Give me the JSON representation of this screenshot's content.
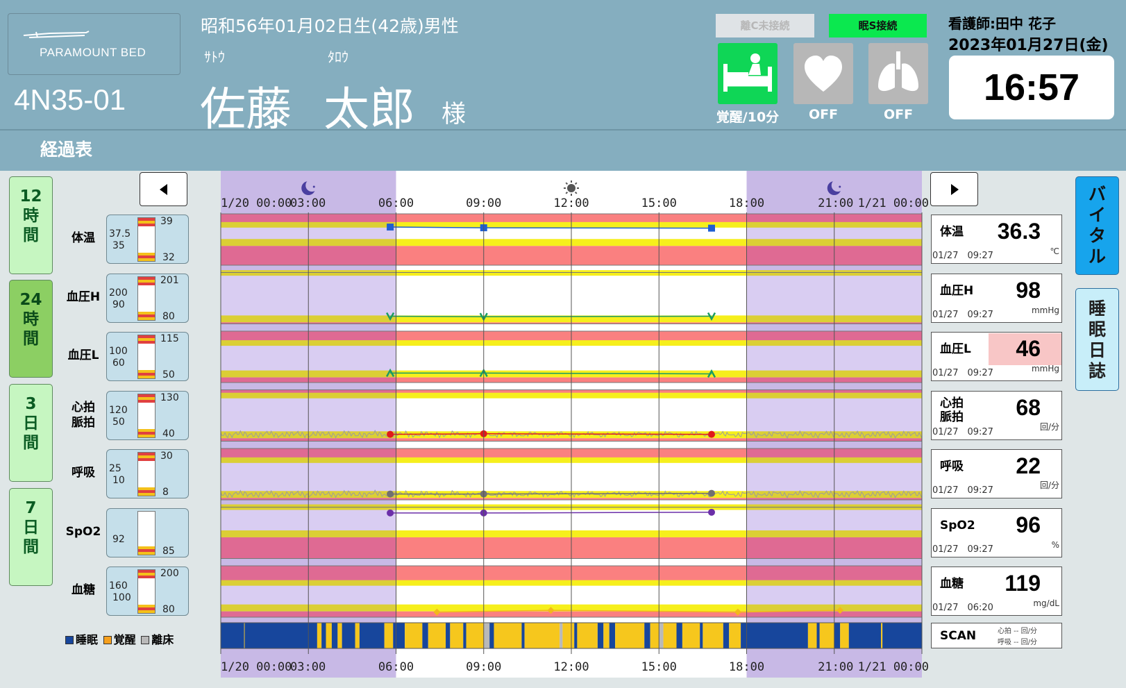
{
  "header": {
    "logo_text": "PARAMOUNT BED",
    "room": "4N35-01",
    "birth_line": "昭和56年01月02日生(42歳)男性",
    "family_kana": "ｻﾄｳ",
    "given_kana": "ﾀﾛｳ",
    "family_name": "佐藤",
    "given_name": "太郎",
    "honorific": "様",
    "conn_c": "離C未接続",
    "conn_s": "眠S接続",
    "bed_status_label": "覚醒/10分",
    "heart_label": "OFF",
    "lung_label": "OFF",
    "nurse": "看護師:田中 花子",
    "date": "2023年01月27日(金)",
    "time": "16:57",
    "colors": {
      "header_bg": "#85aebf",
      "connected": "#0be84f",
      "disconnected": "#dfe3e6",
      "bed_icon_bg": "#0fd656",
      "off_icon_bg": "#b7b7b7"
    },
    "icons": [
      "bed-person-icon",
      "heart-icon",
      "lungs-icon"
    ]
  },
  "subheader": {
    "title": "経過表"
  },
  "periods": [
    "12\n時\n間",
    "24\n時\n間",
    "3\n日\n間",
    "7\n日\n間"
  ],
  "active_period": 1,
  "right_tabs": {
    "vital": "バ\nイ\nタ\nル",
    "sleep": "睡\n眠\n日\n誌"
  },
  "time_axis": {
    "labels": [
      "1/20 00:00",
      "03:00",
      "06:00",
      "09:00",
      "12:00",
      "15:00",
      "18:00",
      "21:00",
      "1/21 00:00"
    ],
    "hours": [
      0,
      3,
      6,
      9,
      12,
      15,
      18,
      21,
      24
    ],
    "night_ranges": [
      [
        0,
        6
      ],
      [
        18,
        24
      ]
    ],
    "icons": [
      {
        "name": "moon-icon",
        "hour": 3
      },
      {
        "name": "sun-icon",
        "hour": 12
      },
      {
        "name": "moon-icon",
        "hour": 21
      }
    ]
  },
  "vitals": [
    {
      "key": "temp",
      "label": "体温",
      "scale_top": "39",
      "scale_bottom": "32",
      "scale_hi": "37.5",
      "scale_lo": "35",
      "card_label": "体温",
      "value": "36.3",
      "time": "01/27　09:27",
      "unit": "℃",
      "alert": false,
      "marker": "square",
      "color": "#1f5fd1",
      "ymin": 32,
      "ymax": 39,
      "normal": [
        35,
        37.5
      ],
      "points": [
        [
          5.8,
          37.2
        ],
        [
          9,
          37.1
        ],
        [
          16.8,
          37.05
        ]
      ]
    },
    {
      "key": "bph",
      "label": "血圧H",
      "scale_top": "201",
      "scale_bottom": "80",
      "scale_hi": "200",
      "scale_lo": "90",
      "card_label": "血圧H",
      "value": "98",
      "time": "01/27　09:27",
      "unit": "mmHg",
      "alert": false,
      "marker": "v",
      "color": "#1a9b63",
      "ymin": 80,
      "ymax": 201,
      "normal": [
        90,
        200
      ],
      "points": [
        [
          5.8,
          98
        ],
        [
          9,
          97
        ],
        [
          16.8,
          98
        ]
      ]
    },
    {
      "key": "bpl",
      "label": "血圧L",
      "scale_top": "115",
      "scale_bottom": "50",
      "scale_hi": "100",
      "scale_lo": "60",
      "card_label": "血圧L",
      "value": "46",
      "time": "01/27　09:27",
      "unit": "mmHg",
      "alert": true,
      "marker": "^",
      "color": "#1a9b63",
      "ymin": 50,
      "ymax": 115,
      "normal": [
        60,
        100
      ],
      "points": [
        [
          5.8,
          62
        ],
        [
          9,
          62
        ],
        [
          16.8,
          61
        ]
      ]
    },
    {
      "key": "hr",
      "label": "心拍\n脈拍",
      "scale_top": "130",
      "scale_bottom": "40",
      "scale_hi": "120",
      "scale_lo": "50",
      "card_label": "心拍\n脈拍",
      "value": "68",
      "time": "01/27　09:27",
      "unit": "回/分",
      "alert": false,
      "marker": "circle",
      "color": "#e01a1a",
      "ymin": 40,
      "ymax": 130,
      "normal": [
        50,
        120
      ],
      "points": [
        [
          5.8,
          52
        ],
        [
          9,
          53
        ],
        [
          16.8,
          52
        ]
      ],
      "trace": true
    },
    {
      "key": "resp",
      "label": "呼吸",
      "scale_top": "30",
      "scale_bottom": "8",
      "scale_hi": "25",
      "scale_lo": "10",
      "card_label": "呼吸",
      "value": "22",
      "time": "01/27　09:27",
      "unit": "回/分",
      "alert": false,
      "marker": "circle",
      "color": "#707070",
      "ymin": 8,
      "ymax": 30,
      "normal": [
        10,
        25
      ],
      "points": [
        [
          5.8,
          10.5
        ],
        [
          9,
          10.5
        ],
        [
          16.8,
          10.8
        ]
      ],
      "trace": true
    },
    {
      "key": "spo2",
      "label": "SpO2",
      "scale_top": "",
      "scale_bottom": "85",
      "scale_hi": "",
      "scale_lo": "92",
      "card_label": "SpO2",
      "value": "96",
      "time": "01/27　09:27",
      "unit": "%",
      "alert": false,
      "marker": "circle",
      "color": "#6b2fa8",
      "ymin": 85,
      "ymax": 100,
      "normal": [
        92,
        100
      ],
      "points": [
        [
          5.8,
          98.3
        ],
        [
          9,
          98.3
        ],
        [
          16.8,
          98.5
        ]
      ]
    },
    {
      "key": "glu",
      "label": "血糖",
      "scale_top": "200",
      "scale_bottom": "80",
      "scale_hi": "160",
      "scale_lo": "100",
      "card_label": "血糖",
      "value": "119",
      "time": "01/27　06:20",
      "unit": "mg/dL",
      "alert": false,
      "marker": "diamond",
      "color": "#f3b81a",
      "ymin": 80,
      "ymax": 200,
      "normal": [
        100,
        160
      ],
      "points": [
        [
          7.4,
          92
        ],
        [
          11.3,
          96
        ],
        [
          17.7,
          92
        ],
        [
          21.2,
          96
        ]
      ]
    }
  ],
  "scan": {
    "label": "SCAN",
    "line1": "心拍 -- 回/分",
    "line2": "呼吸 -- 回/分"
  },
  "legend": {
    "sleep": "睡眠",
    "awake": "覚醒",
    "out": "離床",
    "colors": {
      "sleep": "#17469c",
      "awake": "#f6c71d",
      "out": "#b9b9b9"
    }
  },
  "sleep_bar": [
    [
      "s",
      0,
      0.8
    ],
    [
      "a",
      0.8,
      0.82
    ],
    [
      "s",
      0.82,
      3.3
    ],
    [
      "a",
      3.3,
      3.45
    ],
    [
      "s",
      3.45,
      3.6
    ],
    [
      "a",
      3.6,
      3.8
    ],
    [
      "s",
      3.8,
      4.0
    ],
    [
      "a",
      4.0,
      4.15
    ],
    [
      "s",
      4.15,
      4.6
    ],
    [
      "a",
      4.6,
      4.75
    ],
    [
      "s",
      4.75,
      5.6
    ],
    [
      "a",
      5.6,
      5.9
    ],
    [
      "s",
      5.9,
      6.3
    ],
    [
      "a",
      6.3,
      6.9
    ],
    [
      "s",
      6.9,
      7.1
    ],
    [
      "a",
      7.1,
      7.7
    ],
    [
      "s",
      7.7,
      7.85
    ],
    [
      "a",
      7.85,
      8.3
    ],
    [
      "s",
      8.3,
      8.4
    ],
    [
      "a",
      8.4,
      9.0
    ],
    [
      "o",
      9.0,
      9.2
    ],
    [
      "s",
      9.2,
      9.35
    ],
    [
      "a",
      9.35,
      10.3
    ],
    [
      "s",
      10.3,
      10.4
    ],
    [
      "a",
      10.4,
      11.6
    ],
    [
      "o",
      11.6,
      11.7
    ],
    [
      "a",
      11.7,
      12.1
    ],
    [
      "s",
      12.1,
      12.2
    ],
    [
      "a",
      12.2,
      12.9
    ],
    [
      "s",
      12.9,
      13.1
    ],
    [
      "a",
      13.1,
      13.3
    ],
    [
      "s",
      13.3,
      13.5
    ],
    [
      "a",
      13.5,
      14.5
    ],
    [
      "s",
      14.5,
      14.7
    ],
    [
      "a",
      14.7,
      15.0
    ],
    [
      "o",
      15.0,
      15.15
    ],
    [
      "a",
      15.15,
      15.6
    ],
    [
      "s",
      15.6,
      15.8
    ],
    [
      "a",
      15.8,
      16.4
    ],
    [
      "s",
      16.4,
      16.5
    ],
    [
      "a",
      16.5,
      17.2
    ],
    [
      "s",
      17.2,
      17.4
    ],
    [
      "a",
      17.4,
      17.8
    ],
    [
      "s",
      17.8,
      20.1
    ],
    [
      "a",
      20.1,
      20.4
    ],
    [
      "s",
      20.4,
      20.5
    ],
    [
      "a",
      20.5,
      21.0
    ],
    [
      "s",
      21.0,
      21.2
    ],
    [
      "a",
      21.2,
      21.5
    ],
    [
      "s",
      21.5,
      22.6
    ],
    [
      "a",
      22.6,
      22.65
    ],
    [
      "s",
      22.65,
      24
    ]
  ]
}
